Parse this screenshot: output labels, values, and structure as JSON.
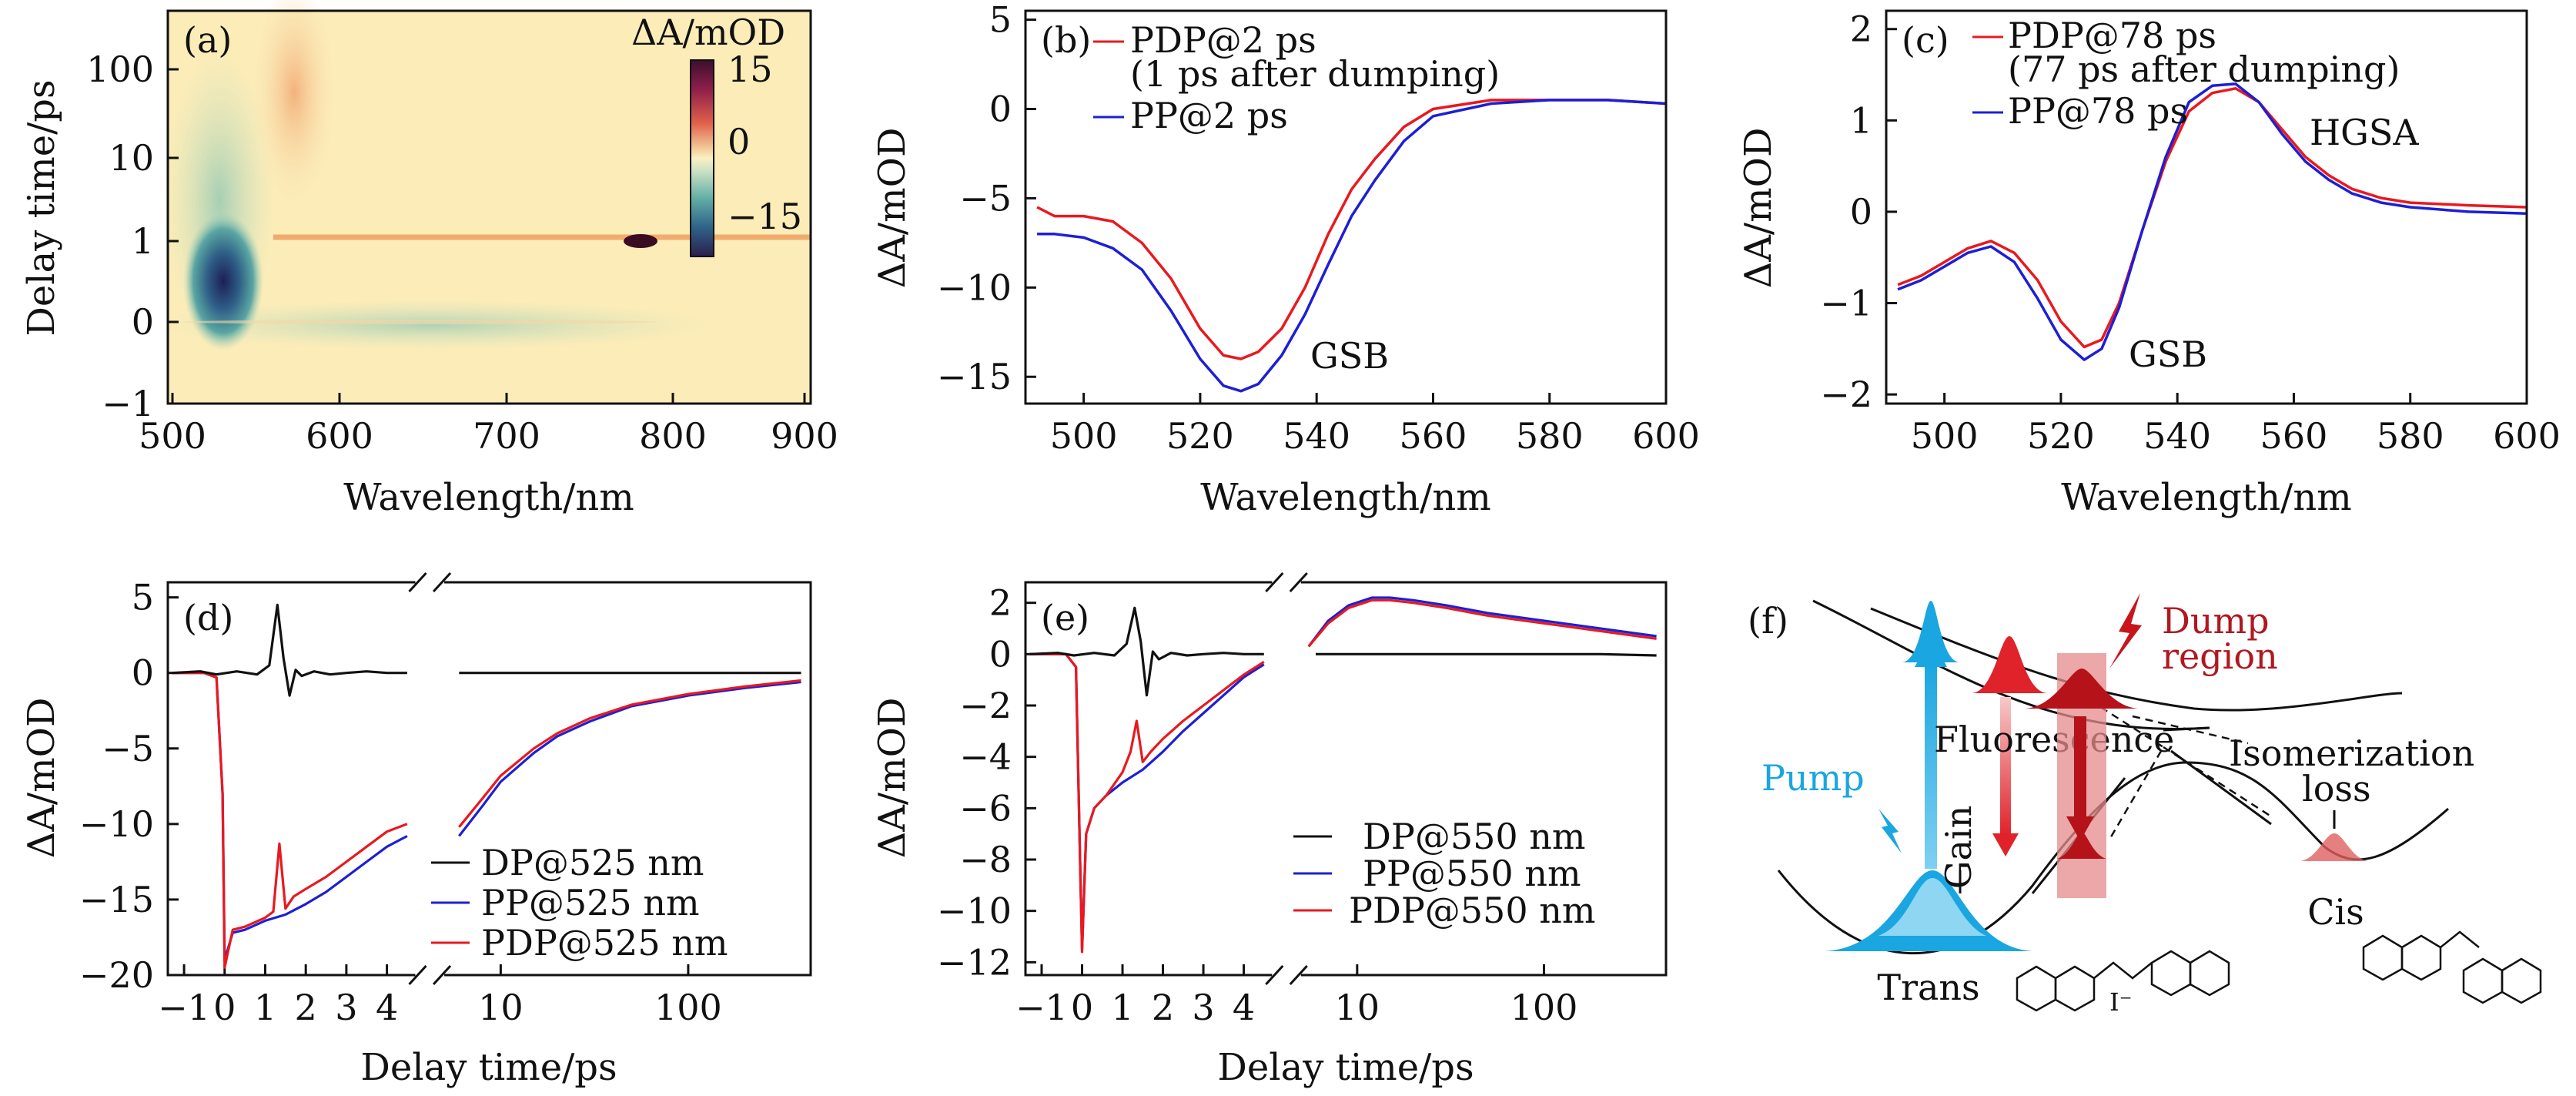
{
  "chart_data": [
    {
      "panel": "a",
      "type": "heatmap",
      "label": "(a)",
      "xlabel": "Wavelength/nm",
      "ylabel": "Delay time/ps",
      "xlim": [
        490,
        905
      ],
      "xticks": [
        "500",
        "600",
        "700",
        "800",
        "900"
      ],
      "yticks": [
        "100",
        "10",
        "1",
        "0",
        "−1"
      ],
      "colorbar": {
        "title": "ΔA/mOD",
        "ticks": [
          "15",
          "0",
          "−15"
        ],
        "range": [
          -15,
          15
        ]
      }
    },
    {
      "panel": "b",
      "type": "line",
      "label": "(b)",
      "xlabel": "Wavelength/nm",
      "ylabel": "ΔA/mOD",
      "xlim": [
        490,
        600
      ],
      "ylim": [
        -16.5,
        5.5
      ],
      "xticks": [
        "500",
        "520",
        "540",
        "560",
        "580",
        "600"
      ],
      "yticks": [
        "5",
        "0",
        "−5",
        "−10",
        "−15"
      ],
      "annotation": "GSB",
      "series": [
        {
          "name": "PDP@2 ps",
          "legend_line2": "(1 ps after dumping)",
          "color": "#e8191f",
          "x": [
            492,
            495,
            500,
            505,
            510,
            515,
            520,
            524,
            527,
            530,
            534,
            538,
            542,
            546,
            550,
            555,
            560,
            570,
            580,
            590,
            600
          ],
          "y": [
            -5.5,
            -6.0,
            -6.0,
            -6.3,
            -7.5,
            -9.5,
            -12.3,
            -13.8,
            -14.0,
            -13.6,
            -12.3,
            -10.0,
            -7.0,
            -4.5,
            -2.8,
            -1.0,
            0.0,
            0.5,
            0.5,
            0.5,
            0.3
          ]
        },
        {
          "name": "PP@2 ps",
          "color": "#1d1fd4",
          "x": [
            492,
            495,
            500,
            505,
            510,
            515,
            520,
            524,
            527,
            530,
            534,
            538,
            542,
            546,
            550,
            555,
            560,
            570,
            580,
            590,
            600
          ],
          "y": [
            -7.0,
            -7.0,
            -7.2,
            -7.8,
            -9.0,
            -11.3,
            -14.0,
            -15.5,
            -15.8,
            -15.4,
            -13.8,
            -11.5,
            -8.7,
            -6.0,
            -4.0,
            -1.8,
            -0.4,
            0.3,
            0.5,
            0.5,
            0.3
          ]
        }
      ]
    },
    {
      "panel": "c",
      "type": "line",
      "label": "(c)",
      "xlabel": "Wavelength/nm",
      "ylabel": "ΔA/mOD",
      "xlim": [
        490,
        600
      ],
      "ylim": [
        -2.1,
        2.2
      ],
      "xticks": [
        "500",
        "520",
        "540",
        "560",
        "580",
        "600"
      ],
      "yticks": [
        "2",
        "1",
        "0",
        "−1",
        "−2"
      ],
      "annotations": [
        "HGSA",
        "GSB"
      ],
      "series": [
        {
          "name": "PDP@78 ps",
          "legend_line2": "(77 ps after dumping)",
          "color": "#e8191f",
          "x": [
            492,
            496,
            500,
            504,
            508,
            512,
            516,
            520,
            524,
            527,
            530,
            534,
            538,
            542,
            546,
            550,
            554,
            558,
            562,
            566,
            570,
            575,
            580,
            590,
            600
          ],
          "y": [
            -0.8,
            -0.7,
            -0.55,
            -0.4,
            -0.32,
            -0.45,
            -0.75,
            -1.2,
            -1.48,
            -1.4,
            -1.0,
            -0.2,
            0.55,
            1.1,
            1.3,
            1.35,
            1.2,
            0.9,
            0.6,
            0.4,
            0.25,
            0.15,
            0.1,
            0.07,
            0.05
          ]
        },
        {
          "name": "PP@78 ps",
          "color": "#1d1fd4",
          "x": [
            492,
            496,
            500,
            504,
            508,
            512,
            516,
            520,
            524,
            527,
            530,
            534,
            538,
            542,
            546,
            550,
            554,
            558,
            562,
            566,
            570,
            575,
            580,
            590,
            600
          ],
          "y": [
            -0.85,
            -0.75,
            -0.6,
            -0.45,
            -0.38,
            -0.55,
            -0.95,
            -1.4,
            -1.62,
            -1.5,
            -1.05,
            -0.2,
            0.6,
            1.2,
            1.38,
            1.4,
            1.2,
            0.85,
            0.55,
            0.35,
            0.2,
            0.1,
            0.05,
            0.0,
            -0.02
          ]
        }
      ]
    },
    {
      "panel": "d",
      "type": "line",
      "label": "(d)",
      "xlabel": "Delay time/ps",
      "ylabel": "ΔA/mOD",
      "ylim": [
        -20,
        6
      ],
      "xticks_linear": [
        "−1",
        "0",
        "1",
        "2",
        "3",
        "4"
      ],
      "xticks_log": [
        "10",
        "100"
      ],
      "yticks": [
        "5",
        "0",
        "−5",
        "−10",
        "−15",
        "−20"
      ],
      "series": [
        {
          "name": "DP@525 nm",
          "color": "#111111",
          "lin_t": [
            -1.3,
            -0.6,
            -0.2,
            0.3,
            0.8,
            1.1,
            1.3,
            1.45,
            1.6,
            1.75,
            1.9,
            2.2,
            2.6,
            3,
            3.5,
            4,
            4.5
          ],
          "lin_v": [
            0,
            0.1,
            -0.1,
            0.1,
            -0.1,
            0.5,
            4.5,
            1.0,
            -1.5,
            0.2,
            -0.2,
            0.1,
            -0.1,
            0,
            0.1,
            0,
            0
          ],
          "log_t": [
            6,
            10,
            20,
            50,
            100,
            200,
            400
          ],
          "log_v": [
            0,
            0,
            0,
            0,
            0,
            0,
            0
          ]
        },
        {
          "name": "PP@525 nm",
          "color": "#1d1fd4",
          "lin_t": [
            -1.3,
            -0.5,
            -0.2,
            -0.05,
            0,
            0.2,
            0.5,
            1,
            1.5,
            2,
            2.5,
            3,
            3.5,
            4,
            4.5
          ],
          "lin_v": [
            0,
            0,
            -0.3,
            -8,
            -19,
            -17.2,
            -17,
            -16.4,
            -16,
            -15.3,
            -14.5,
            -13.5,
            -12.5,
            -11.5,
            -10.8
          ],
          "log_t": [
            6,
            8,
            10,
            15,
            20,
            30,
            50,
            100,
            200,
            400
          ],
          "log_v": [
            -10.8,
            -8.8,
            -7.2,
            -5.3,
            -4.2,
            -3.2,
            -2.2,
            -1.5,
            -1.0,
            -0.6
          ]
        },
        {
          "name": "PDP@525 nm",
          "color": "#e8191f",
          "lin_t": [
            -1.3,
            -0.5,
            -0.2,
            -0.05,
            0,
            0.2,
            0.5,
            1,
            1.2,
            1.35,
            1.5,
            1.7,
            2,
            2.5,
            3,
            3.5,
            4,
            4.5
          ],
          "lin_v": [
            0,
            0,
            -0.3,
            -8,
            -19.5,
            -17,
            -16.8,
            -16.2,
            -15.8,
            -11.3,
            -15.6,
            -14.8,
            -14.3,
            -13.5,
            -12.5,
            -11.5,
            -10.5,
            -10
          ],
          "log_t": [
            6,
            8,
            10,
            15,
            20,
            30,
            50,
            100,
            200,
            400
          ],
          "log_v": [
            -10.2,
            -8.3,
            -6.8,
            -5.0,
            -4.0,
            -3.0,
            -2.1,
            -1.4,
            -0.9,
            -0.5
          ]
        }
      ]
    },
    {
      "panel": "e",
      "type": "line",
      "label": "(e)",
      "xlabel": "Delay time/ps",
      "ylabel": "ΔA/mOD",
      "ylim": [
        -12.5,
        2.8
      ],
      "xticks_linear": [
        "−1",
        "0",
        "1",
        "2",
        "3",
        "4"
      ],
      "xticks_log": [
        "10",
        "100"
      ],
      "yticks": [
        "2",
        "0",
        "−2",
        "−4",
        "−6",
        "−8",
        "−10",
        "−12"
      ],
      "series": [
        {
          "name": "DP@550 nm",
          "color": "#111111",
          "lin_t": [
            -1.3,
            -0.6,
            -0.2,
            0.3,
            0.8,
            1.1,
            1.3,
            1.45,
            1.6,
            1.75,
            1.9,
            2.2,
            2.6,
            3,
            3.5,
            4,
            4.5
          ],
          "lin_v": [
            0,
            0.05,
            -0.05,
            0.05,
            -0.05,
            0.4,
            1.8,
            0.5,
            -1.6,
            0.1,
            -0.2,
            0.05,
            -0.05,
            0,
            0.05,
            0,
            0
          ],
          "log_t": [
            6,
            10,
            20,
            50,
            100,
            200,
            400
          ],
          "log_v": [
            0,
            0,
            0,
            0,
            0,
            0,
            -0.05
          ]
        },
        {
          "name": "PP@550 nm",
          "color": "#1d1fd4",
          "lin_t": [
            -1.3,
            -0.4,
            -0.15,
            -0.05,
            0,
            0.1,
            0.3,
            0.6,
            1,
            1.5,
            2,
            2.5,
            3,
            3.5,
            4,
            4.5
          ],
          "lin_v": [
            0,
            0,
            -0.5,
            -8,
            -11.5,
            -7,
            -6.0,
            -5.5,
            -5.0,
            -4.5,
            -3.8,
            -3.0,
            -2.3,
            -1.6,
            -0.9,
            -0.4
          ],
          "log_t": [
            5.5,
            7,
            9,
            12,
            15,
            20,
            30,
            50,
            100,
            200,
            400
          ],
          "log_v": [
            0.3,
            1.3,
            1.9,
            2.2,
            2.2,
            2.1,
            1.9,
            1.6,
            1.3,
            1.0,
            0.7
          ]
        },
        {
          "name": "PDP@550 nm",
          "color": "#e8191f",
          "lin_t": [
            -1.3,
            -0.4,
            -0.15,
            -0.05,
            0,
            0.1,
            0.3,
            0.6,
            1,
            1.2,
            1.35,
            1.5,
            1.7,
            2,
            2.5,
            3,
            3.5,
            4,
            4.5
          ],
          "lin_v": [
            0,
            0,
            -0.5,
            -8,
            -11.6,
            -7,
            -6.0,
            -5.5,
            -4.6,
            -3.8,
            -2.6,
            -4.2,
            -3.8,
            -3.3,
            -2.6,
            -2.0,
            -1.4,
            -0.8,
            -0.3
          ],
          "log_t": [
            5.5,
            7,
            9,
            12,
            15,
            20,
            30,
            50,
            100,
            200,
            400
          ],
          "log_v": [
            0.3,
            1.2,
            1.8,
            2.1,
            2.1,
            2.0,
            1.8,
            1.5,
            1.2,
            0.9,
            0.6
          ]
        }
      ]
    }
  ],
  "diagram_f": {
    "label": "(f)",
    "pump": "Pump",
    "gain": "Gain",
    "fluorescence": "Fluorescence",
    "dump_line1": "Dump",
    "dump_line2": "region",
    "isomerization_line1": "Isomerization",
    "isomerization_line2": "loss",
    "trans": "Trans",
    "cis": "Cis",
    "iodide": "I⁻",
    "colors": {
      "pump": "#1aa6e0",
      "dump": "#c8141c",
      "dump_text": "#b01820",
      "pump_text": "#1aa6e0"
    }
  }
}
